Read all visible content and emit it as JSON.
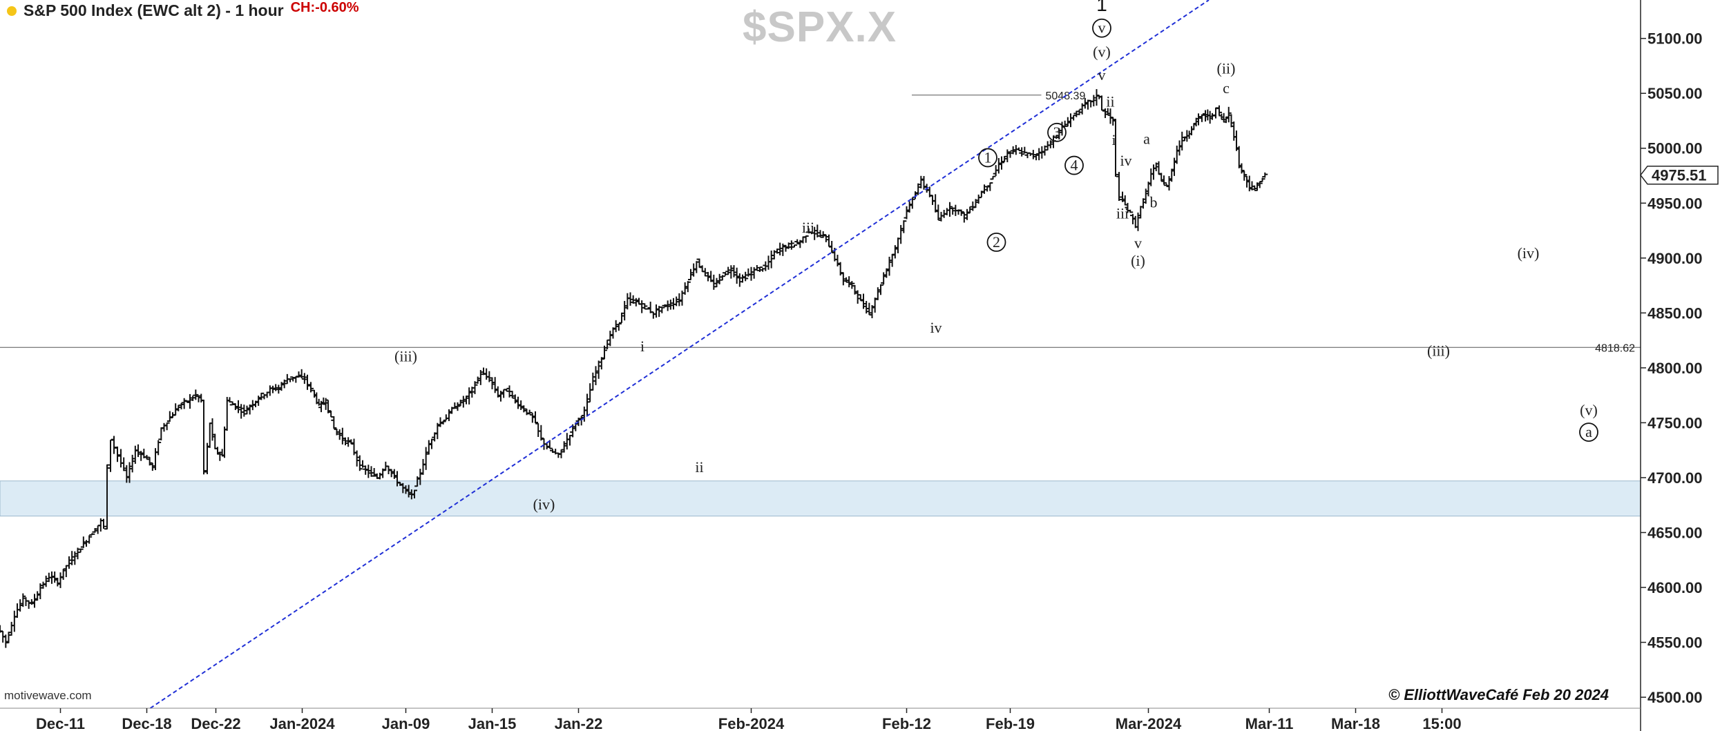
{
  "header": {
    "title": "S&P 500 Index (EWC alt 2) - 1 hour",
    "change": "CH:-0.60%",
    "dot_color": "#f5c518",
    "change_color": "#cc0000"
  },
  "watermark": "$SPX.X",
  "source": "motivewave.com",
  "copyright": "© ElliottWaveCafé Feb 20 2024",
  "chart_data": {
    "type": "bar",
    "symbol": "$SPX.X",
    "ylim": [
      4490,
      5135
    ],
    "y_ticks": [
      "5100.00",
      "5050.00",
      "5000.00",
      "4950.00",
      "4900.00",
      "4850.00",
      "4800.00",
      "4750.00",
      "4700.00",
      "4650.00",
      "4600.00",
      "4550.00",
      "4500.00"
    ],
    "x_ticks": [
      {
        "label": "Dec-11",
        "x": 0.5
      },
      {
        "label": "Dec-18",
        "x": 5.5
      },
      {
        "label": "Dec-22",
        "x": 9.5
      },
      {
        "label": "Jan-2024",
        "x": 14.5
      },
      {
        "label": "Jan-09",
        "x": 20.5
      },
      {
        "label": "Jan-15",
        "x": 25.5
      },
      {
        "label": "Jan-22",
        "x": 30.5
      },
      {
        "label": "Feb-2024",
        "x": 40.5
      },
      {
        "label": "Feb-12",
        "x": 49.5
      },
      {
        "label": "Feb-19",
        "x": 55.5
      },
      {
        "label": "Mar-2024",
        "x": 63.5
      },
      {
        "label": "Mar-11",
        "x": 70.5
      },
      {
        "label": "Mar-18",
        "x": 75.5
      },
      {
        "label": "15:00",
        "x": 80.5
      }
    ],
    "xlim": [
      -3,
      92
    ],
    "last_price": "4975.51",
    "levels": [
      {
        "label": "5048.39",
        "value": 5048.39,
        "x_start": 49.8,
        "x_end": 57.3
      },
      {
        "label": "4818.62",
        "value": 4818.62
      }
    ],
    "support_zone": [
      4665,
      4697
    ],
    "trendline": {
      "from": {
        "x": 5.7,
        "y": 4490
      },
      "to": {
        "x": 67,
        "y": 5135
      }
    },
    "price_path": [
      [
        -3,
        4565
      ],
      [
        -2.5,
        4550
      ],
      [
        -2,
        4575
      ],
      [
        -1.5,
        4590
      ],
      [
        -1,
        4585
      ],
      [
        -0.5,
        4600
      ],
      [
        0,
        4610
      ],
      [
        0.5,
        4605
      ],
      [
        1,
        4620
      ],
      [
        1.5,
        4630
      ],
      [
        2,
        4640
      ],
      [
        2.5,
        4650
      ],
      [
        3,
        4660
      ],
      [
        3.2,
        4655
      ],
      [
        3.4,
        4710
      ],
      [
        3.6,
        4735
      ],
      [
        4,
        4720
      ],
      [
        4.5,
        4700
      ],
      [
        5,
        4725
      ],
      [
        5.5,
        4720
      ],
      [
        6,
        4710
      ],
      [
        6.5,
        4745
      ],
      [
        7,
        4755
      ],
      [
        7.5,
        4765
      ],
      [
        8,
        4770
      ],
      [
        8.5,
        4775
      ],
      [
        8.8,
        4770
      ],
      [
        9,
        4705
      ],
      [
        9.3,
        4750
      ],
      [
        9.6,
        4725
      ],
      [
        10,
        4720
      ],
      [
        10.3,
        4770
      ],
      [
        10.8,
        4765
      ],
      [
        11.3,
        4760
      ],
      [
        11.8,
        4768
      ],
      [
        12.3,
        4775
      ],
      [
        12.8,
        4780
      ],
      [
        13.3,
        4782
      ],
      [
        13.8,
        4790
      ],
      [
        14.3,
        4792
      ],
      [
        14.8,
        4790
      ],
      [
        15.2,
        4780
      ],
      [
        15.6,
        4765
      ],
      [
        16,
        4770
      ],
      [
        16.5,
        4745
      ],
      [
        17,
        4735
      ],
      [
        17.5,
        4730
      ],
      [
        18,
        4710
      ],
      [
        18.5,
        4705
      ],
      [
        19,
        4700
      ],
      [
        19.5,
        4712
      ],
      [
        20,
        4700
      ],
      [
        20.5,
        4690
      ],
      [
        21,
        4683
      ],
      [
        21.5,
        4705
      ],
      [
        22,
        4730
      ],
      [
        22.5,
        4748
      ],
      [
        23,
        4755
      ],
      [
        23.5,
        4765
      ],
      [
        24,
        4770
      ],
      [
        24.5,
        4780
      ],
      [
        25,
        4795
      ],
      [
        25.5,
        4790
      ],
      [
        26,
        4775
      ],
      [
        26.5,
        4780
      ],
      [
        27,
        4770
      ],
      [
        27.5,
        4762
      ],
      [
        28,
        4755
      ],
      [
        28.5,
        4735
      ],
      [
        29,
        4725
      ],
      [
        29.5,
        4720
      ],
      [
        30,
        4735
      ],
      [
        30.5,
        4750
      ],
      [
        31,
        4760
      ],
      [
        31.5,
        4790
      ],
      [
        32,
        4810
      ],
      [
        32.5,
        4830
      ],
      [
        33,
        4842
      ],
      [
        33.5,
        4862
      ],
      [
        34,
        4860
      ],
      [
        34.5,
        4855
      ],
      [
        35,
        4850
      ],
      [
        35.5,
        4855
      ],
      [
        36,
        4858
      ],
      [
        36.5,
        4862
      ],
      [
        37,
        4880
      ],
      [
        37.5,
        4897
      ],
      [
        38,
        4885
      ],
      [
        38.5,
        4875
      ],
      [
        39,
        4885
      ],
      [
        39.5,
        4890
      ],
      [
        40,
        4880
      ],
      [
        40.5,
        4885
      ],
      [
        41,
        4890
      ],
      [
        41.5,
        4892
      ],
      [
        42,
        4905
      ],
      [
        42.5,
        4910
      ],
      [
        43,
        4912
      ],
      [
        43.5,
        4915
      ],
      [
        44,
        4925
      ],
      [
        44.5,
        4922
      ],
      [
        45,
        4918
      ],
      [
        45.5,
        4900
      ],
      [
        46,
        4880
      ],
      [
        46.5,
        4875
      ],
      [
        47,
        4860
      ],
      [
        47.5,
        4850
      ],
      [
        48,
        4870
      ],
      [
        48.5,
        4890
      ],
      [
        49,
        4910
      ],
      [
        49.5,
        4935
      ],
      [
        50,
        4955
      ],
      [
        50.5,
        4970
      ],
      [
        51,
        4958
      ],
      [
        51.5,
        4935
      ],
      [
        52,
        4945
      ],
      [
        52.5,
        4945
      ],
      [
        53,
        4938
      ],
      [
        53.5,
        4948
      ],
      [
        54,
        4960
      ],
      [
        54.5,
        4970
      ],
      [
        55,
        4985
      ],
      [
        55.5,
        4995
      ],
      [
        56,
        4998
      ],
      [
        56.5,
        4995
      ],
      [
        57,
        4993
      ],
      [
        57.5,
        4998
      ],
      [
        58,
        5005
      ],
      [
        58.5,
        5015
      ],
      [
        59,
        5025
      ],
      [
        59.5,
        5032
      ],
      [
        60,
        5040
      ],
      [
        60.5,
        5045
      ],
      [
        60.8,
        5048
      ],
      [
        61,
        5035
      ],
      [
        61.3,
        5030
      ],
      [
        61.6,
        5025
      ],
      [
        61.8,
        4975
      ],
      [
        62,
        4955
      ],
      [
        62.3,
        4948
      ],
      [
        62.6,
        4940
      ],
      [
        62.9,
        4930
      ],
      [
        63.2,
        4945
      ],
      [
        63.5,
        4960
      ],
      [
        63.8,
        4975
      ],
      [
        64.1,
        4985
      ],
      [
        64.4,
        4970
      ],
      [
        64.7,
        4965
      ],
      [
        65,
        4980
      ],
      [
        65.3,
        4998
      ],
      [
        65.6,
        5008
      ],
      [
        66,
        5015
      ],
      [
        66.4,
        5025
      ],
      [
        66.8,
        5030
      ],
      [
        67.2,
        5028
      ],
      [
        67.6,
        5035
      ],
      [
        68,
        5025
      ],
      [
        68.3,
        5032
      ],
      [
        68.6,
        5012
      ],
      [
        68.9,
        4985
      ],
      [
        69.2,
        4975
      ],
      [
        69.5,
        4965
      ],
      [
        69.8,
        4962
      ],
      [
        70.1,
        4970
      ],
      [
        70.4,
        4975
      ]
    ],
    "wave_labels": [
      {
        "text": "1",
        "x": 60.8,
        "y": 5125,
        "size": "large"
      },
      {
        "text": "v",
        "x": 60.8,
        "y": 5105,
        "circled": true
      },
      {
        "text": "(v)",
        "x": 60.8,
        "y": 5083
      },
      {
        "text": "v",
        "x": 60.8,
        "y": 5062
      },
      {
        "text": "ii",
        "x": 61.3,
        "y": 5038
      },
      {
        "text": "i",
        "x": 61.5,
        "y": 5003
      },
      {
        "text": "iv",
        "x": 62.2,
        "y": 4984
      },
      {
        "text": "iii",
        "x": 62.0,
        "y": 4936
      },
      {
        "text": "v",
        "x": 62.9,
        "y": 4909
      },
      {
        "text": "(i)",
        "x": 62.9,
        "y": 4893
      },
      {
        "text": "a",
        "x": 63.4,
        "y": 5004
      },
      {
        "text": "b",
        "x": 63.8,
        "y": 4946
      },
      {
        "text": "(ii)",
        "x": 68.0,
        "y": 5068
      },
      {
        "text": "c",
        "x": 68.0,
        "y": 5050
      },
      {
        "text": "(iv)",
        "x": 85.5,
        "y": 4900
      },
      {
        "text": "(iii)",
        "x": 80.3,
        "y": 4811
      },
      {
        "text": "(v)",
        "x": 89.0,
        "y": 4757
      },
      {
        "text": "a",
        "x": 89.0,
        "y": 4737,
        "circled": true
      },
      {
        "text": "1",
        "x": 54.2,
        "y": 4987,
        "circled": true
      },
      {
        "text": "2",
        "x": 54.7,
        "y": 4910,
        "circled": true
      },
      {
        "text": "3",
        "x": 58.2,
        "y": 5010,
        "circled": true
      },
      {
        "text": "4",
        "x": 59.2,
        "y": 4980,
        "circled": true
      },
      {
        "text": "iii",
        "x": 43.8,
        "y": 4923
      },
      {
        "text": "iv",
        "x": 51.2,
        "y": 4832
      },
      {
        "text": "i",
        "x": 34.2,
        "y": 4815
      },
      {
        "text": "ii",
        "x": 37.5,
        "y": 4705
      },
      {
        "text": "(iii)",
        "x": 20.5,
        "y": 4806
      },
      {
        "text": "(iv)",
        "x": 28.5,
        "y": 4671
      }
    ]
  }
}
